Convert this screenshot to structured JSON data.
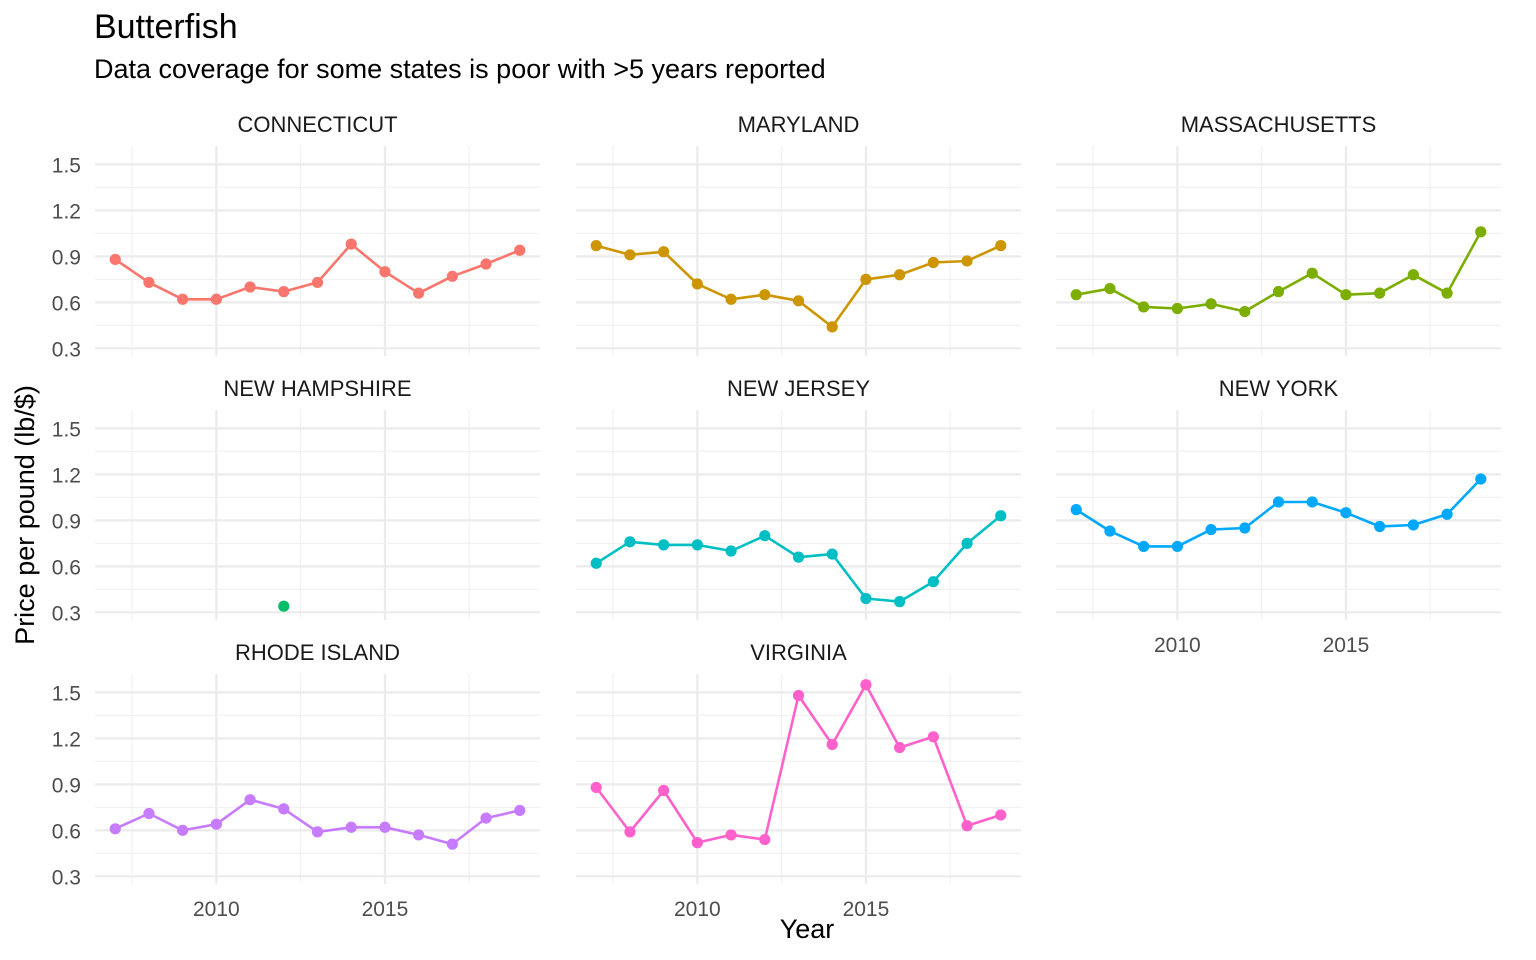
{
  "chart_data": {
    "type": "line",
    "title": "Butterfish",
    "subtitle": "Data coverage for some states is poor with >5 years reported",
    "xlabel": "Year",
    "ylabel": "Price per pound (lb/$)",
    "xlim": [
      2006.4,
      2019.6
    ],
    "ylim": [
      0.25,
      1.62
    ],
    "x_ticks": [
      2010,
      2015
    ],
    "y_ticks": [
      0.3,
      0.6,
      0.9,
      1.2,
      1.5
    ],
    "grid": true,
    "legend": "none",
    "series": [
      {
        "name": "CONNECTICUT",
        "color": "#F8766D",
        "x": [
          2007,
          2008,
          2009,
          2010,
          2011,
          2012,
          2013,
          2014,
          2015,
          2016,
          2017,
          2018,
          2019
        ],
        "values": [
          0.88,
          0.73,
          0.62,
          0.62,
          0.7,
          0.67,
          0.73,
          0.98,
          0.8,
          0.66,
          0.77,
          0.85,
          0.94
        ]
      },
      {
        "name": "MARYLAND",
        "color": "#CD9600",
        "x": [
          2007,
          2008,
          2009,
          2010,
          2011,
          2012,
          2013,
          2014,
          2015,
          2016,
          2017,
          2018,
          2019
        ],
        "values": [
          0.97,
          0.91,
          0.93,
          0.72,
          0.62,
          0.65,
          0.61,
          0.44,
          0.75,
          0.78,
          0.86,
          0.87,
          0.97
        ]
      },
      {
        "name": "MASSACHUSETTS",
        "color": "#7CAE00",
        "x": [
          2007,
          2008,
          2009,
          2010,
          2011,
          2012,
          2013,
          2014,
          2015,
          2016,
          2017,
          2018,
          2019
        ],
        "values": [
          0.65,
          0.69,
          0.57,
          0.56,
          0.59,
          0.54,
          0.67,
          0.79,
          0.65,
          0.66,
          0.78,
          0.66,
          1.06
        ]
      },
      {
        "name": "NEW HAMPSHIRE",
        "color": "#00BE67",
        "x": [
          2012
        ],
        "values": [
          0.34
        ]
      },
      {
        "name": "NEW JERSEY",
        "color": "#00BFC4",
        "x": [
          2007,
          2008,
          2009,
          2010,
          2011,
          2012,
          2013,
          2014,
          2015,
          2016,
          2017,
          2018,
          2019
        ],
        "values": [
          0.62,
          0.76,
          0.74,
          0.74,
          0.7,
          0.8,
          0.66,
          0.68,
          0.39,
          0.37,
          0.5,
          0.75,
          0.93
        ]
      },
      {
        "name": "NEW YORK",
        "color": "#00A9FF",
        "x": [
          2007,
          2008,
          2009,
          2010,
          2011,
          2012,
          2013,
          2014,
          2015,
          2016,
          2017,
          2018,
          2019
        ],
        "values": [
          0.97,
          0.83,
          0.73,
          0.73,
          0.84,
          0.85,
          1.02,
          1.02,
          0.95,
          0.86,
          0.87,
          0.94,
          1.17
        ]
      },
      {
        "name": "RHODE ISLAND",
        "color": "#C77CFF",
        "x": [
          2007,
          2008,
          2009,
          2010,
          2011,
          2012,
          2013,
          2014,
          2015,
          2016,
          2017,
          2018,
          2019
        ],
        "values": [
          0.61,
          0.71,
          0.6,
          0.64,
          0.8,
          0.74,
          0.59,
          0.62,
          0.62,
          0.57,
          0.51,
          0.68,
          0.73
        ]
      },
      {
        "name": "VIRGINIA",
        "color": "#FF61CC",
        "x": [
          2007,
          2008,
          2009,
          2010,
          2011,
          2012,
          2013,
          2014,
          2015,
          2016,
          2017,
          2018,
          2019
        ],
        "values": [
          0.88,
          0.59,
          0.86,
          0.52,
          0.57,
          0.54,
          1.48,
          1.16,
          1.55,
          1.14,
          1.21,
          0.63,
          0.7
        ]
      }
    ]
  }
}
